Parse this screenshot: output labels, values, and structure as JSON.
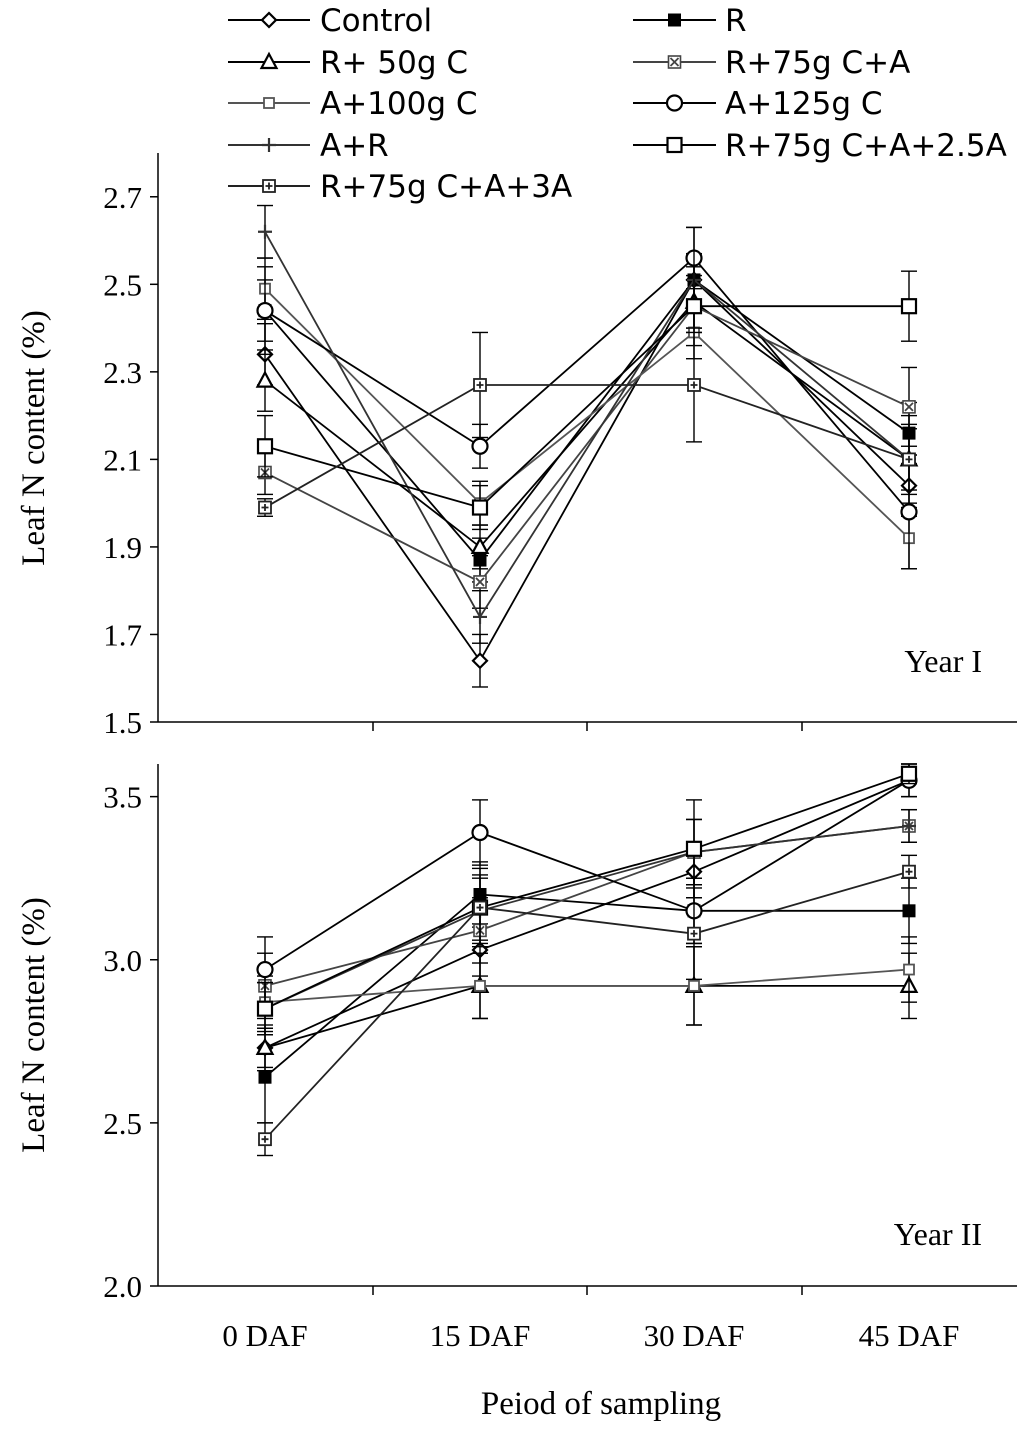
{
  "chart_data": {
    "type": "line",
    "categories": [
      "0 DAF",
      "15 DAF",
      "30 DAF",
      "45 DAF"
    ],
    "xlabel": "Peiod of sampling",
    "legend": {
      "placement": "top",
      "entries": [
        {
          "name": "Control",
          "marker": "diamond-open",
          "color": "#000000"
        },
        {
          "name": "R",
          "marker": "square-filled",
          "color": "#000000"
        },
        {
          "name": "R+ 50g C",
          "marker": "triangle-open",
          "color": "#000000"
        },
        {
          "name": "R+75g C+A",
          "marker": "xsquare",
          "color": "#444444"
        },
        {
          "name": "A+100g C",
          "marker": "square-small-open",
          "color": "#555555"
        },
        {
          "name": "A+125g C",
          "marker": "circle-open",
          "color": "#000000"
        },
        {
          "name": "A+R",
          "marker": "plus",
          "color": "#333333"
        },
        {
          "name": "R+75g C+A+2.5A",
          "marker": "square-open",
          "color": "#000000"
        },
        {
          "name": "R+75g C+A+3A",
          "marker": "plus-square",
          "color": "#222222"
        }
      ]
    },
    "panels": [
      {
        "label": "Year I",
        "ylabel": "Leaf N content (%)",
        "ylim": [
          1.5,
          2.8
        ],
        "yticks": [
          "1.5",
          "1.7",
          "1.9",
          "2.1",
          "2.3",
          "2.5",
          "2.7"
        ],
        "series": [
          {
            "values": [
              2.34,
              1.64,
              2.51,
              2.04
            ],
            "errors": [
              0.07,
              0.06,
              0.06,
              0.07
            ]
          },
          {
            "values": [
              2.44,
              1.87,
              2.51,
              2.16
            ],
            "errors": [
              0.07,
              0.05,
              0.06,
              0.07
            ]
          },
          {
            "values": [
              2.28,
              1.9,
              2.46,
              2.1
            ],
            "errors": [
              0.07,
              0.05,
              0.06,
              0.07
            ]
          },
          {
            "values": [
              2.07,
              1.82,
              2.45,
              2.22
            ],
            "errors": [
              0.05,
              0.06,
              0.06,
              0.09
            ]
          },
          {
            "values": [
              2.49,
              2.0,
              2.39,
              1.92
            ],
            "errors": [
              0.07,
              0.05,
              0.06,
              0.07
            ]
          },
          {
            "values": [
              2.44,
              2.13,
              2.56,
              1.98
            ],
            "errors": [
              0.1,
              0.05,
              0.07,
              0.13
            ]
          },
          {
            "values": [
              2.62,
              1.74,
              2.51,
              2.1
            ],
            "errors": [
              0.06,
              0.06,
              0.12,
              0.08
            ]
          },
          {
            "values": [
              2.13,
              1.99,
              2.45,
              2.45
            ],
            "errors": [
              0.07,
              0.05,
              0.09,
              0.08
            ]
          },
          {
            "values": [
              1.99,
              2.27,
              2.27,
              2.1
            ],
            "errors": [
              0.02,
              0.12,
              0.13,
              0.1
            ]
          }
        ]
      },
      {
        "label": "Year II",
        "ylabel": "Leaf N content (%)",
        "ylim": [
          2.0,
          3.6
        ],
        "yticks": [
          "2.0",
          "2.5",
          "3.0",
          "3.5"
        ],
        "series": [
          {
            "values": [
              2.73,
              3.03,
              3.27,
              3.55
            ],
            "errors": [
              0.07,
              0.08,
              0.08,
              0.05
            ]
          },
          {
            "values": [
              2.64,
              3.2,
              3.15,
              3.15
            ],
            "errors": [
              0.14,
              0.1,
              0.1,
              0.1
            ]
          },
          {
            "values": [
              2.73,
              2.92,
              2.92,
              2.92
            ],
            "errors": [
              0.06,
              0.1,
              0.12,
              0.1
            ]
          },
          {
            "values": [
              2.92,
              3.09,
              3.33,
              3.41
            ],
            "errors": [
              0.1,
              0.1,
              0.1,
              0.05
            ]
          },
          {
            "values": [
              2.87,
              2.92,
              2.92,
              2.97
            ],
            "errors": [
              0.08,
              0.1,
              0.12,
              0.1
            ]
          },
          {
            "values": [
              2.97,
              3.39,
              3.15,
              3.55
            ],
            "errors": [
              0.1,
              0.1,
              0.1,
              0.05
            ]
          },
          {
            "values": [
              2.85,
              3.15,
              3.33,
              3.41
            ],
            "errors": [
              0.08,
              0.1,
              0.1,
              0.05
            ]
          },
          {
            "values": [
              2.85,
              3.16,
              3.34,
              3.57
            ],
            "errors": [
              0.08,
              0.1,
              0.15,
              0.03
            ]
          },
          {
            "values": [
              2.45,
              3.16,
              3.08,
              3.27
            ],
            "errors": [
              0.05,
              0.12,
              0.14,
              0.05
            ]
          }
        ]
      }
    ]
  }
}
